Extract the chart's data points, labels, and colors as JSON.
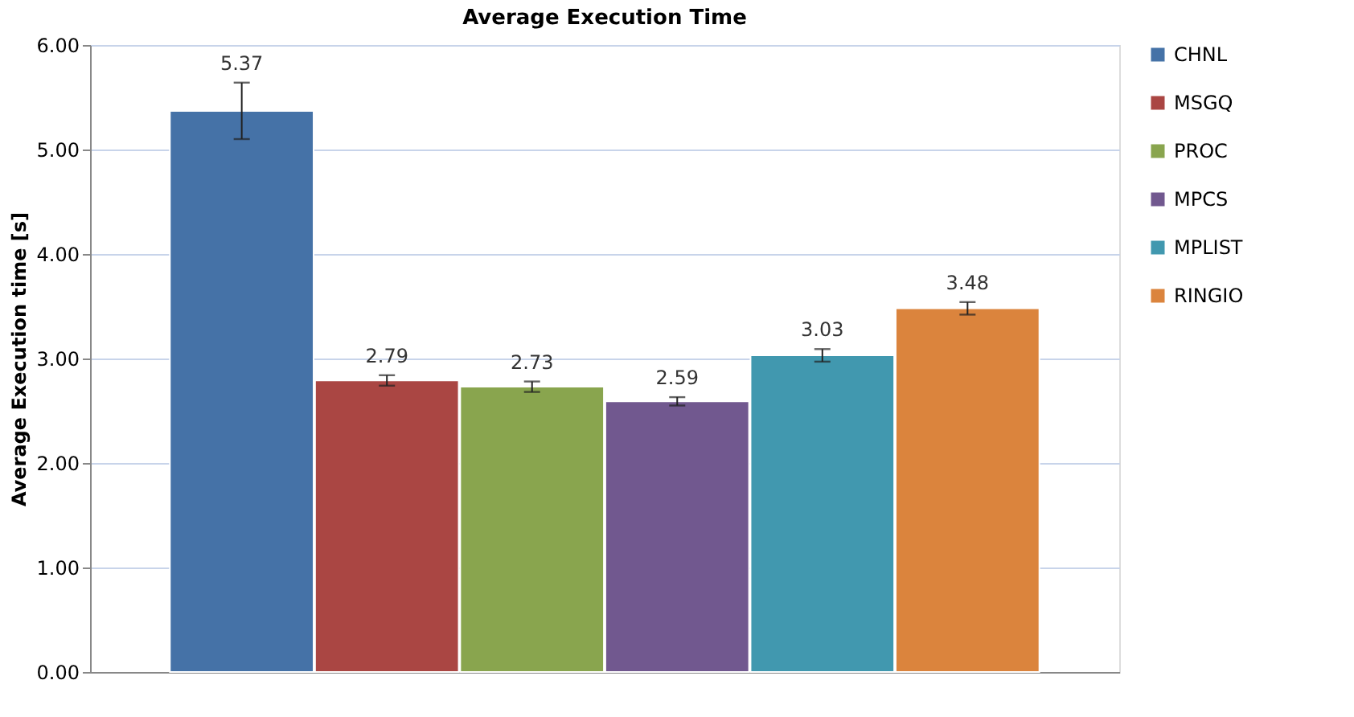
{
  "chart_data": {
    "type": "bar",
    "title": "Average Execution Time",
    "ylabel": "Average Execution time [s]",
    "categories": [
      null
    ],
    "series": [
      {
        "name": "CHNL",
        "color": "#4572a7",
        "values": [
          5.37
        ],
        "errors": [
          0.27
        ]
      },
      {
        "name": "MSGQ",
        "color": "#aa4643",
        "values": [
          2.79
        ],
        "errors": [
          0.05
        ]
      },
      {
        "name": "PROC",
        "color": "#89a54e",
        "values": [
          2.73
        ],
        "errors": [
          0.05
        ]
      },
      {
        "name": "MPCS",
        "color": "#71588f",
        "values": [
          2.59
        ],
        "errors": [
          0.04
        ]
      },
      {
        "name": "MPLIST",
        "color": "#4198af",
        "values": [
          3.03
        ],
        "errors": [
          0.06
        ]
      },
      {
        "name": "RINGIO",
        "color": "#db843d",
        "values": [
          3.48
        ],
        "errors": [
          0.06
        ]
      }
    ],
    "ylim": [
      0,
      6
    ],
    "yticks": [
      {
        "value": 0,
        "label": "0.00"
      },
      {
        "value": 1,
        "label": "1.00"
      },
      {
        "value": 2,
        "label": "2.00"
      },
      {
        "value": 3,
        "label": "3.00"
      },
      {
        "value": 4,
        "label": "4.00"
      },
      {
        "value": 5,
        "label": "5.00"
      },
      {
        "value": 6,
        "label": "6.00"
      }
    ],
    "data_labels": true,
    "grid": "y",
    "legend": "right",
    "tick_labels": "y"
  }
}
